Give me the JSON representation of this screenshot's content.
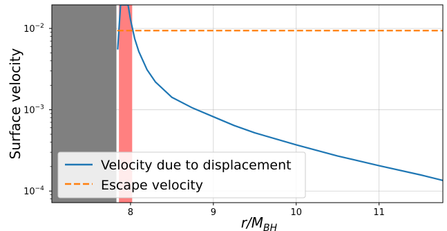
{
  "chart_data": {
    "type": "line",
    "title": "",
    "xlabel": "r/M",
    "xlabel_subscript": "BH",
    "ylabel": "Surface velocity",
    "xlim": [
      7.05,
      11.77
    ],
    "ylim": [
      7.2e-05,
      0.0195
    ],
    "yscale": "log",
    "grid": true,
    "x_ticks": [
      8,
      9,
      10,
      11
    ],
    "x_tick_labels": [
      "8",
      "9",
      "10",
      "11"
    ],
    "y_ticks": [
      0.0001,
      0.001,
      0.01
    ],
    "y_tick_labels": [
      "10",
      "10",
      "10"
    ],
    "y_tick_exponents": [
      "−4",
      "−3",
      "−2"
    ],
    "shaded_regions": [
      {
        "x_from": 7.05,
        "x_to": 7.83,
        "color": "#808080"
      },
      {
        "x_from": 7.86,
        "x_to": 8.02,
        "color": "#ff8080"
      }
    ],
    "series": [
      {
        "name": "Velocity due to displacement",
        "color": "#1f77b4",
        "style": "solid",
        "x": [
          7.845,
          7.86,
          7.88,
          7.9,
          7.92,
          7.93,
          7.95,
          7.97,
          8.0,
          8.05,
          8.1,
          8.2,
          8.3,
          8.5,
          8.75,
          9.0,
          9.25,
          9.5,
          10.0,
          10.5,
          11.0,
          11.5,
          11.77
        ],
        "y": [
          0.0055,
          0.0095,
          0.0195,
          0.0195,
          0.0195,
          0.0195,
          0.0195,
          0.0195,
          0.0128,
          0.0075,
          0.0052,
          0.0031,
          0.0022,
          0.00142,
          0.00105,
          0.00082,
          0.00064,
          0.00052,
          0.00037,
          0.00027,
          0.000205,
          0.000158,
          0.000135
        ]
      },
      {
        "name": "Escape velocity",
        "color": "#ff7f0e",
        "style": "dashed",
        "x": [
          7.84,
          11.77
        ],
        "y": [
          0.0094,
          0.0094
        ]
      }
    ],
    "legend": {
      "location": "lower-left",
      "entries": [
        "Velocity due to displacement",
        "Escape velocity"
      ]
    }
  }
}
